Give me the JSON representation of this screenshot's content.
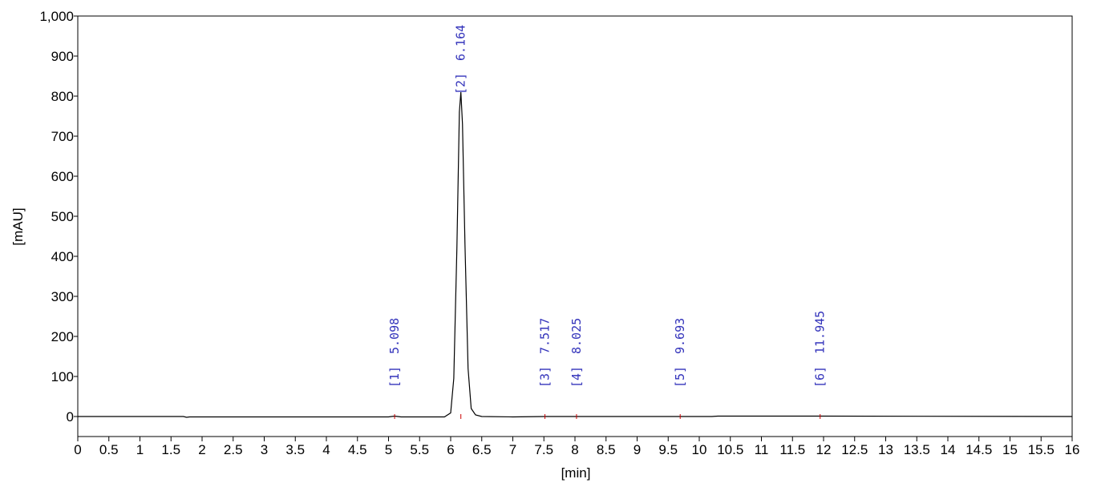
{
  "chart_data": {
    "type": "line",
    "xlabel": "[min]",
    "ylabel": "[mAU]",
    "xlim": [
      0,
      16
    ],
    "ylim": [
      -50,
      1000
    ],
    "xticks": [
      0,
      0.5,
      1,
      1.5,
      2,
      2.5,
      3,
      3.5,
      4,
      4.5,
      5,
      5.5,
      6,
      6.5,
      7,
      7.5,
      8,
      8.5,
      9,
      9.5,
      10,
      10.5,
      11,
      11.5,
      12,
      12.5,
      13,
      13.5,
      14,
      14.5,
      15,
      15.5,
      16
    ],
    "yticks": [
      0,
      100,
      200,
      300,
      400,
      500,
      600,
      700,
      800,
      900,
      {
        "value": 1000,
        "label": "1,000"
      }
    ],
    "series": [
      {
        "color": "#000000",
        "x": [
          0,
          1.7,
          1.75,
          1.8,
          5.0,
          5.098,
          5.2,
          5.9,
          6.0,
          6.05,
          6.1,
          6.14,
          6.164,
          6.19,
          6.23,
          6.28,
          6.33,
          6.4,
          6.5,
          7.0,
          7.517,
          8.025,
          9.693,
          10.2,
          10.3,
          11.945,
          16
        ],
        "values": [
          0,
          0,
          -2,
          -1,
          -1,
          1,
          -1,
          -1,
          9,
          95,
          420,
          760,
          810,
          730,
          430,
          120,
          20,
          4,
          0,
          -1,
          0,
          0,
          0,
          0,
          1,
          1,
          0
        ]
      }
    ],
    "peaks": [
      {
        "label": "[1]",
        "time": 5.098
      },
      {
        "label": "[2]",
        "time": 6.164
      },
      {
        "label": "[3]",
        "time": 7.517
      },
      {
        "label": "[4]",
        "time": 8.025
      },
      {
        "label": "[5]",
        "time": 9.693
      },
      {
        "label": "[6]",
        "time": 11.945
      }
    ],
    "annotation_color": "#3333bb"
  }
}
